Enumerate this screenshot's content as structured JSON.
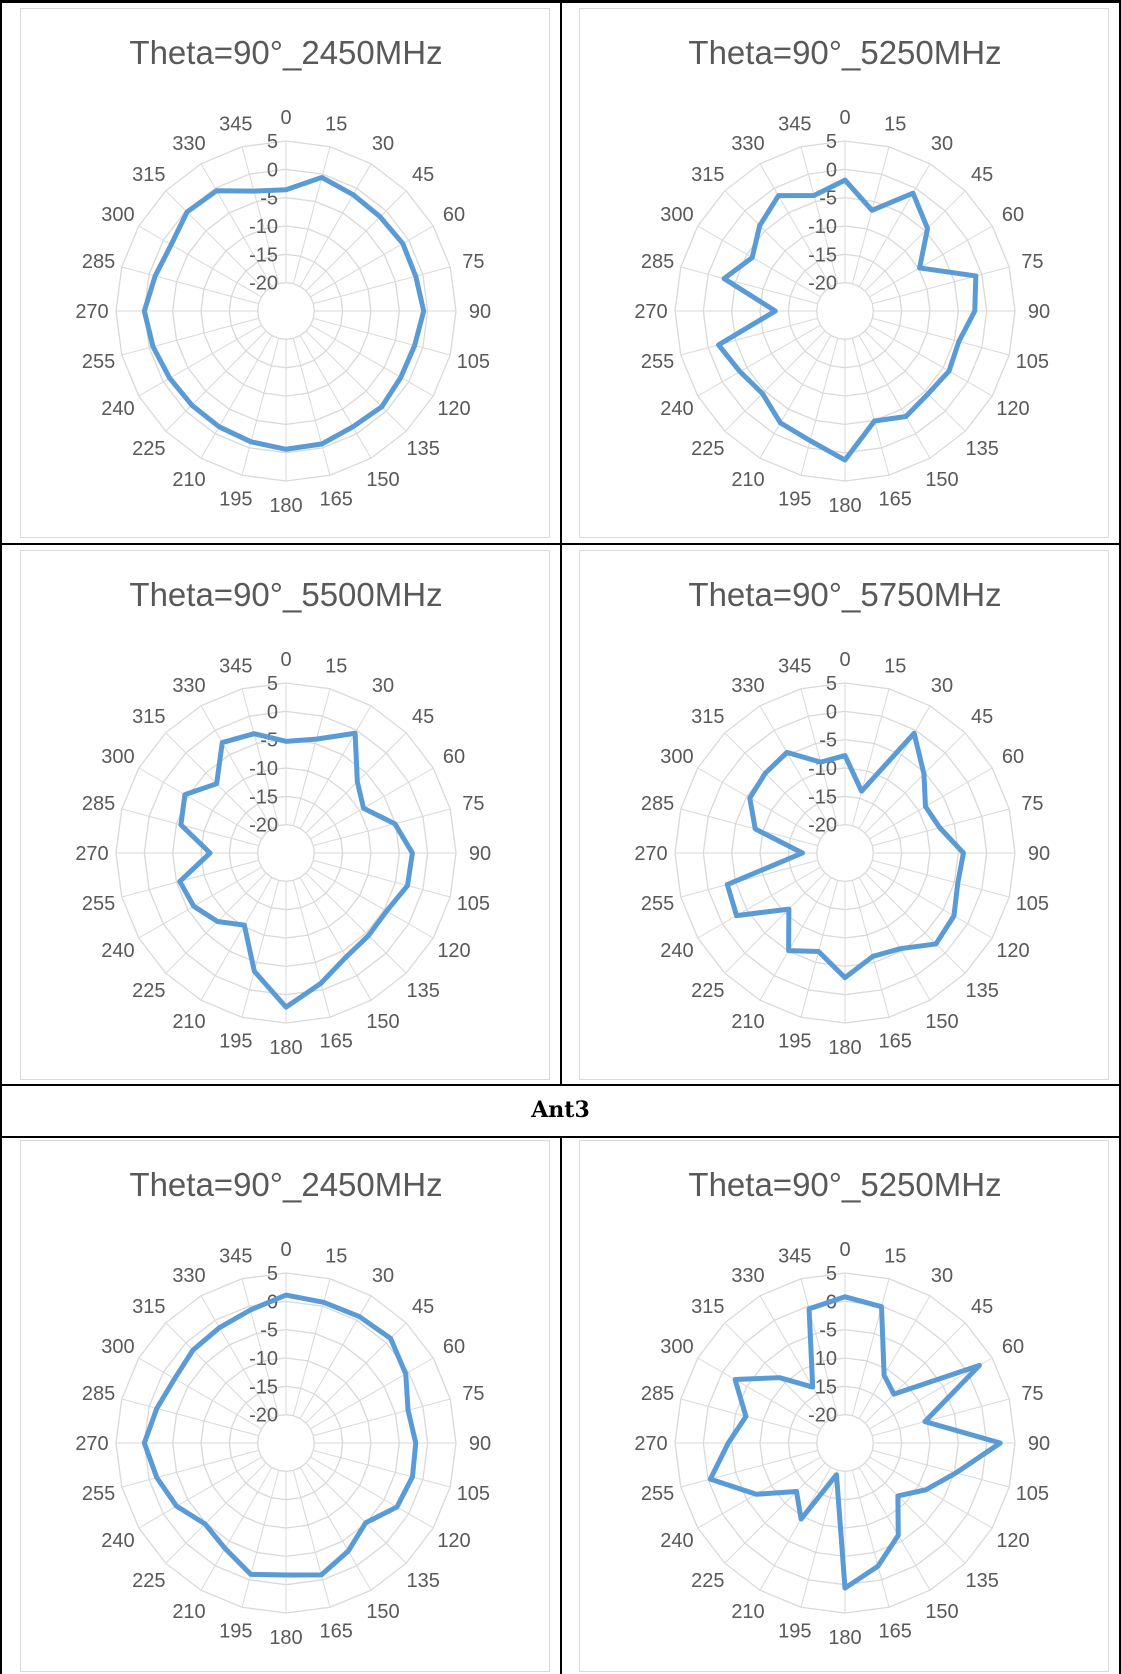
{
  "section_label": "Ant3",
  "style": {
    "series_color": "#5b9bd5",
    "grid_color": "#d9d9d9",
    "text_color": "#595959"
  },
  "chart_data": [
    {
      "type": "polar-line",
      "title": "Theta=90°_2450MHz",
      "angles": [
        0,
        15,
        30,
        45,
        60,
        75,
        90,
        105,
        120,
        135,
        150,
        165,
        180,
        195,
        210,
        225,
        240,
        255,
        270,
        285,
        300,
        315,
        330,
        345
      ],
      "r_ticks": [
        "-20",
        "-15",
        "-10",
        "-5",
        "0",
        "5"
      ],
      "rlim": [
        -25,
        5
      ],
      "grid": true,
      "series": [
        {
          "values": [
            -3.6,
            -0.6,
            -1.3,
            -1.5,
            -1.2,
            -1.3,
            -0.7,
            -1.5,
            -1.6,
            -1.1,
            -1.4,
            -0.7,
            -0.6,
            -1.1,
            -1.4,
            -1.5,
            -1.3,
            -0.7,
            0,
            -1.1,
            -1.6,
            -0.3,
            -0.5,
            -3.1
          ]
        }
      ]
    },
    {
      "type": "polar-line",
      "title": "Theta=90°_5250MHz",
      "angles": [
        0,
        15,
        30,
        45,
        60,
        75,
        90,
        105,
        120,
        135,
        150,
        165,
        180,
        195,
        210,
        225,
        240,
        255,
        270,
        285,
        300,
        315,
        330,
        345
      ],
      "r_ticks": [
        "-20",
        "-15",
        "-10",
        "-5",
        "0",
        "5"
      ],
      "rlim": [
        -25,
        5
      ],
      "grid": true,
      "series": [
        {
          "values": [
            -1.9,
            -6.6,
            -1,
            -4.4,
            -9.8,
            -1.1,
            -2.1,
            -4.2,
            -3.8,
            -4.3,
            -3.5,
            -4.9,
            1.3,
            -1.3,
            -2.2,
            -4.4,
            -3.6,
            -1.9,
            -12.7,
            -2.9,
            -6.1,
            -3.7,
            -1.5,
            -3.9
          ]
        }
      ]
    },
    {
      "type": "polar-line",
      "title": "Theta=90°_5500MHz",
      "angles": [
        0,
        15,
        30,
        45,
        60,
        75,
        90,
        105,
        120,
        135,
        150,
        165,
        180,
        195,
        210,
        225,
        240,
        255,
        270,
        285,
        300,
        315,
        330,
        345
      ],
      "r_ticks": [
        "-20",
        "-15",
        "-10",
        "-5",
        "0",
        "5"
      ],
      "rlim": [
        -25,
        5
      ],
      "grid": true,
      "series": [
        {
          "values": [
            -5.3,
            -4.2,
            -0.6,
            -7.2,
            -9.2,
            -5.1,
            -2.7,
            -2.8,
            -4.5,
            -4.4,
            -3.8,
            -1.2,
            2.2,
            -3.4,
            -10.3,
            -7.9,
            -6.2,
            -5.6,
            -11.6,
            -5.8,
            -4.4,
            -7.7,
            -2.5,
            -3.2
          ]
        }
      ]
    },
    {
      "type": "polar-line",
      "title": "Theta=90°_5750MHz",
      "angles": [
        0,
        15,
        30,
        45,
        60,
        75,
        90,
        105,
        120,
        135,
        150,
        165,
        180,
        195,
        210,
        225,
        240,
        255,
        270,
        285,
        300,
        315,
        330,
        345
      ],
      "r_ticks": [
        "-20",
        "-15",
        "-10",
        "-5",
        "0",
        "5"
      ],
      "rlim": [
        -25,
        5
      ],
      "grid": true,
      "series": [
        {
          "values": [
            -7.8,
            -13.7,
            -0.6,
            -5.3,
            -8.6,
            -7.7,
            -4.1,
            -4.4,
            -2.8,
            -2.3,
            -5.5,
            -6.1,
            -3,
            -7,
            -5.1,
            -11,
            -2.9,
            -3.5,
            -17.5,
            -8.6,
            -5.6,
            -5.1,
            -4.5,
            -8.4
          ]
        }
      ]
    },
    {
      "type": "polar-line",
      "title": "Theta=90°_2450MHz",
      "angles": [
        0,
        15,
        30,
        45,
        60,
        75,
        90,
        105,
        120,
        135,
        150,
        165,
        180,
        195,
        210,
        225,
        240,
        255,
        270,
        285,
        300,
        315,
        330,
        345
      ],
      "r_ticks": [
        "-20",
        "-15",
        "-10",
        "-5",
        "0",
        "5"
      ],
      "rlim": [
        -25,
        5
      ],
      "grid": true,
      "series": [
        {
          "values": [
            1.1,
            0.7,
            0.8,
            1.1,
            -0.6,
            -2.7,
            -2.1,
            -1.9,
            -2.4,
            -5.1,
            -3,
            -0.9,
            -1.7,
            -1,
            -3.5,
            -4.8,
            -2.7,
            -1.4,
            0,
            -1.4,
            -2.3,
            -1.8,
            -1.5,
            -0.7
          ]
        }
      ]
    },
    {
      "type": "polar-line",
      "title": "Theta=90°_5250MHz",
      "angles": [
        0,
        15,
        30,
        45,
        60,
        75,
        90,
        105,
        120,
        135,
        150,
        165,
        180,
        195,
        210,
        225,
        240,
        255,
        270,
        285,
        300,
        315,
        330,
        345
      ],
      "r_ticks": [
        "-20",
        "-15",
        "-10",
        "-5",
        "0",
        "5"
      ],
      "rlim": [
        -25,
        5
      ],
      "grid": true,
      "series": [
        {
          "values": [
            0.8,
            -0.1,
            -11.2,
            -12.8,
            2.4,
            -10.4,
            2.4,
            -4.7,
            -8.5,
            -11.8,
            -6.2,
            -2.5,
            0.6,
            -19.2,
            -9.5,
            -12.9,
            -6.9,
            -0.4,
            -4.4,
            -6.9,
            -2.6,
            -8.7,
            -13.6,
            -0.5
          ]
        }
      ]
    }
  ]
}
